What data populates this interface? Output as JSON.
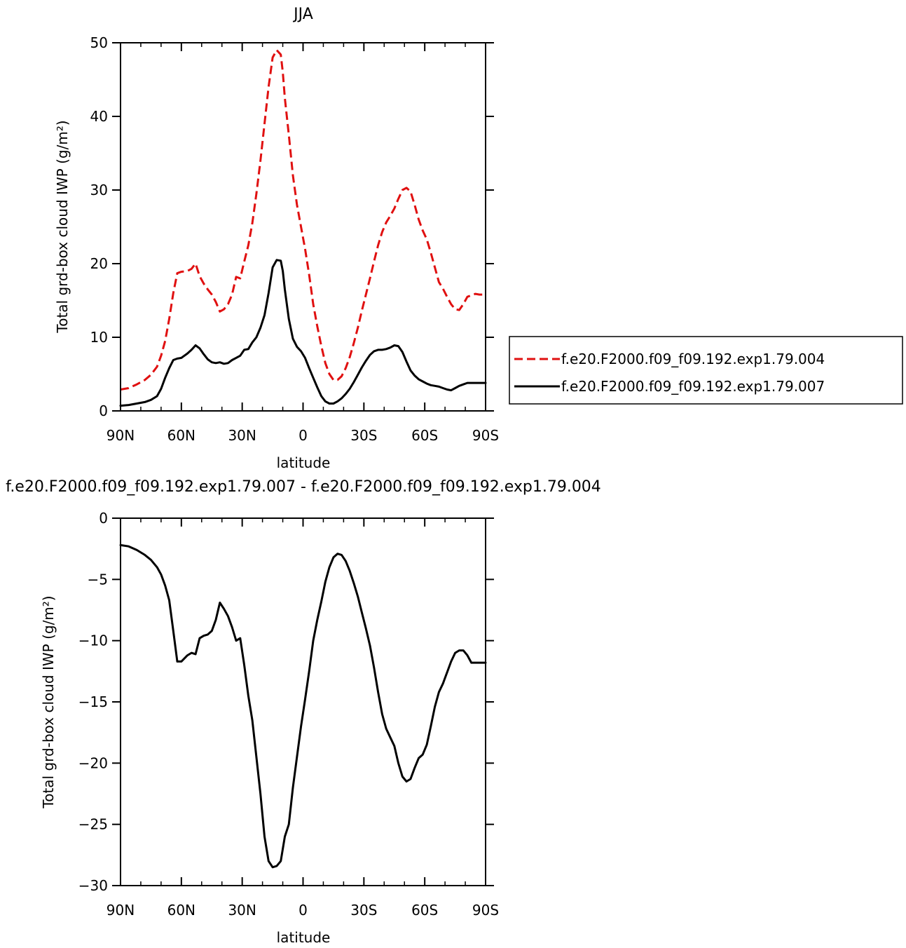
{
  "chart_data": [
    {
      "type": "line",
      "title": "JJA",
      "xlabel": "latitude",
      "ylabel": "Total grd-box cloud IWP (g/m²)",
      "xlim": [
        90,
        -90
      ],
      "ylim": [
        0,
        50
      ],
      "x_ticks": [
        90,
        60,
        30,
        0,
        -30,
        -60,
        -90
      ],
      "x_tick_labels": [
        "90N",
        "60N",
        "30N",
        "0",
        "30S",
        "60S",
        "90S"
      ],
      "y_ticks": [
        0,
        10,
        20,
        30,
        40,
        50
      ],
      "y_tick_labels": [
        "0",
        "10",
        "20",
        "30",
        "40",
        "50"
      ],
      "grid": false,
      "legend_placement": "right",
      "series": [
        {
          "name": "f.e20.F2000.f09_f09.192.exp1.79.004",
          "color": "#e01010",
          "dash": "dashed",
          "x": [
            90,
            86,
            82,
            78,
            75,
            72,
            70,
            68,
            66,
            64,
            62,
            60,
            57,
            55,
            53,
            51,
            49,
            47,
            45,
            43,
            41,
            39,
            37,
            35,
            33,
            31,
            29,
            27,
            25,
            23,
            21,
            19,
            17,
            15,
            13,
            11,
            10,
            9,
            7,
            5,
            3,
            1,
            -1,
            -3,
            -5,
            -7,
            -9,
            -11,
            -13,
            -15,
            -17,
            -19,
            -21,
            -23,
            -25,
            -27,
            -29,
            -31,
            -33,
            -35,
            -37,
            -39,
            -41,
            -43,
            -45,
            -47,
            -49,
            -51,
            -53,
            -55,
            -57,
            -59,
            -61,
            -63,
            -65,
            -67,
            -69,
            -71,
            -73,
            -75,
            -77,
            -79,
            -81,
            -83,
            -85,
            -87,
            -89,
            -90
          ],
          "y": [
            2.9,
            3.1,
            3.6,
            4.2,
            4.9,
            6.0,
            7.5,
            9.5,
            12.5,
            16.0,
            18.7,
            18.9,
            19.0,
            19.3,
            20.0,
            18.3,
            17.3,
            16.5,
            15.8,
            14.8,
            13.5,
            13.8,
            14.5,
            15.8,
            18.2,
            18.0,
            20.3,
            22.5,
            25.5,
            29.5,
            34.0,
            39.0,
            44.0,
            48.0,
            49.0,
            48.4,
            46.0,
            42.5,
            37.5,
            32.0,
            28.0,
            25.0,
            22.0,
            18.5,
            14.5,
            11.5,
            8.8,
            6.5,
            5.0,
            4.2,
            4.2,
            4.7,
            5.8,
            7.3,
            9.2,
            11.3,
            13.6,
            15.8,
            18.0,
            20.3,
            22.5,
            24.3,
            25.6,
            26.5,
            27.5,
            28.8,
            30.0,
            30.3,
            29.8,
            28.0,
            26.0,
            24.5,
            23.3,
            21.5,
            19.5,
            17.5,
            16.6,
            15.5,
            14.5,
            13.8,
            13.7,
            14.5,
            15.5,
            15.7,
            15.9,
            15.8,
            15.8,
            15.8
          ]
        },
        {
          "name": "f.e20.F2000.f09_f09.192.exp1.79.007",
          "color": "#000000",
          "dash": "solid",
          "x": [
            90,
            86,
            82,
            78,
            75,
            72,
            70,
            68,
            66,
            64,
            62,
            60,
            57,
            55,
            53,
            51,
            49,
            47,
            45,
            43,
            41,
            39,
            37,
            35,
            33,
            31,
            29,
            27,
            25,
            23,
            21,
            19,
            17,
            15,
            13,
            11,
            10,
            9,
            7,
            5,
            3,
            1,
            -1,
            -3,
            -5,
            -7,
            -9,
            -11,
            -13,
            -15,
            -17,
            -19,
            -21,
            -23,
            -25,
            -27,
            -29,
            -31,
            -33,
            -35,
            -37,
            -39,
            -41,
            -43,
            -45,
            -47,
            -49,
            -51,
            -53,
            -55,
            -57,
            -59,
            -61,
            -63,
            -65,
            -67,
            -69,
            -71,
            -73,
            -75,
            -77,
            -79,
            -81,
            -83,
            -85,
            -87,
            -89,
            -90
          ],
          "y": [
            0.7,
            0.8,
            1.0,
            1.2,
            1.5,
            2.0,
            3.0,
            4.5,
            5.8,
            6.9,
            7.1,
            7.2,
            7.8,
            8.3,
            8.9,
            8.5,
            7.7,
            7.0,
            6.6,
            6.5,
            6.6,
            6.4,
            6.5,
            6.9,
            7.2,
            7.5,
            8.3,
            8.4,
            9.3,
            10.0,
            11.3,
            13.0,
            16.0,
            19.5,
            20.5,
            20.4,
            19.0,
            16.5,
            12.5,
            9.8,
            8.7,
            8.1,
            7.2,
            5.8,
            4.5,
            3.2,
            2.0,
            1.3,
            1.0,
            1.0,
            1.3,
            1.7,
            2.3,
            3.0,
            3.9,
            4.9,
            5.9,
            6.8,
            7.6,
            8.1,
            8.3,
            8.3,
            8.4,
            8.6,
            8.9,
            8.8,
            8.0,
            6.7,
            5.5,
            4.8,
            4.3,
            4.0,
            3.7,
            3.5,
            3.4,
            3.3,
            3.1,
            2.9,
            2.8,
            3.1,
            3.4,
            3.6,
            3.8,
            3.8,
            3.8,
            3.8,
            3.8,
            3.8
          ]
        }
      ]
    },
    {
      "type": "line",
      "title": "f.e20.F2000.f09_f09.192.exp1.79.007 - f.e20.F2000.f09_f09.192.exp1.79.004",
      "xlabel": "latitude",
      "ylabel": "Total grd-box cloud IWP (g/m²)",
      "xlim": [
        90,
        -90
      ],
      "ylim": [
        -30,
        0
      ],
      "x_ticks": [
        90,
        60,
        30,
        0,
        -30,
        -60,
        -90
      ],
      "x_tick_labels": [
        "90N",
        "60N",
        "30N",
        "0",
        "30S",
        "60S",
        "90S"
      ],
      "y_ticks": [
        0,
        -5,
        -10,
        -15,
        -20,
        -25,
        -30
      ],
      "y_tick_labels": [
        "0",
        "−5",
        "−10",
        "−15",
        "−20",
        "−25",
        "−30"
      ],
      "grid": false,
      "series": [
        {
          "color": "#000000",
          "dash": "solid",
          "x": [
            90,
            86,
            82,
            78,
            75,
            72,
            70,
            68,
            66,
            64,
            62,
            60,
            57,
            55,
            53,
            51,
            49,
            47,
            45,
            43,
            41,
            39,
            37,
            35,
            33,
            31,
            29,
            27,
            25,
            23,
            21,
            19,
            17,
            15,
            13,
            11,
            10,
            9,
            7,
            5,
            3,
            1,
            -1,
            -3,
            -5,
            -7,
            -9,
            -11,
            -13,
            -15,
            -17,
            -19,
            -21,
            -23,
            -25,
            -27,
            -29,
            -31,
            -33,
            -35,
            -37,
            -39,
            -41,
            -43,
            -45,
            -47,
            -49,
            -51,
            -53,
            -55,
            -57,
            -59,
            -61,
            -63,
            -65,
            -67,
            -69,
            -71,
            -73,
            -75,
            -77,
            -79,
            -81,
            -83,
            -85,
            -87,
            -89,
            -90
          ],
          "y": [
            -2.2,
            -2.3,
            -2.6,
            -3.0,
            -3.4,
            -4.0,
            -4.6,
            -5.5,
            -6.7,
            -9.2,
            -11.7,
            -11.7,
            -11.2,
            -11.0,
            -11.1,
            -9.8,
            -9.6,
            -9.5,
            -9.2,
            -8.3,
            -6.9,
            -7.4,
            -8.0,
            -8.9,
            -10.0,
            -9.8,
            -12.0,
            -14.5,
            -16.5,
            -19.5,
            -22.5,
            -26.0,
            -28.0,
            -28.5,
            -28.4,
            -28.0,
            -27.0,
            -26.0,
            -25.0,
            -22.0,
            -19.5,
            -17.0,
            -14.8,
            -12.5,
            -10.0,
            -8.3,
            -6.8,
            -5.2,
            -4.0,
            -3.2,
            -2.9,
            -3.0,
            -3.5,
            -4.3,
            -5.3,
            -6.4,
            -7.7,
            -9.0,
            -10.4,
            -12.2,
            -14.2,
            -16.0,
            -17.2,
            -17.9,
            -18.6,
            -20.0,
            -21.1,
            -21.5,
            -21.3,
            -20.4,
            -19.6,
            -19.3,
            -18.5,
            -17.0,
            -15.4,
            -14.2,
            -13.5,
            -12.6,
            -11.7,
            -11.0,
            -10.8,
            -10.8,
            -11.2,
            -11.8,
            -11.8,
            -11.8,
            -11.8,
            -11.8
          ]
        }
      ]
    }
  ]
}
